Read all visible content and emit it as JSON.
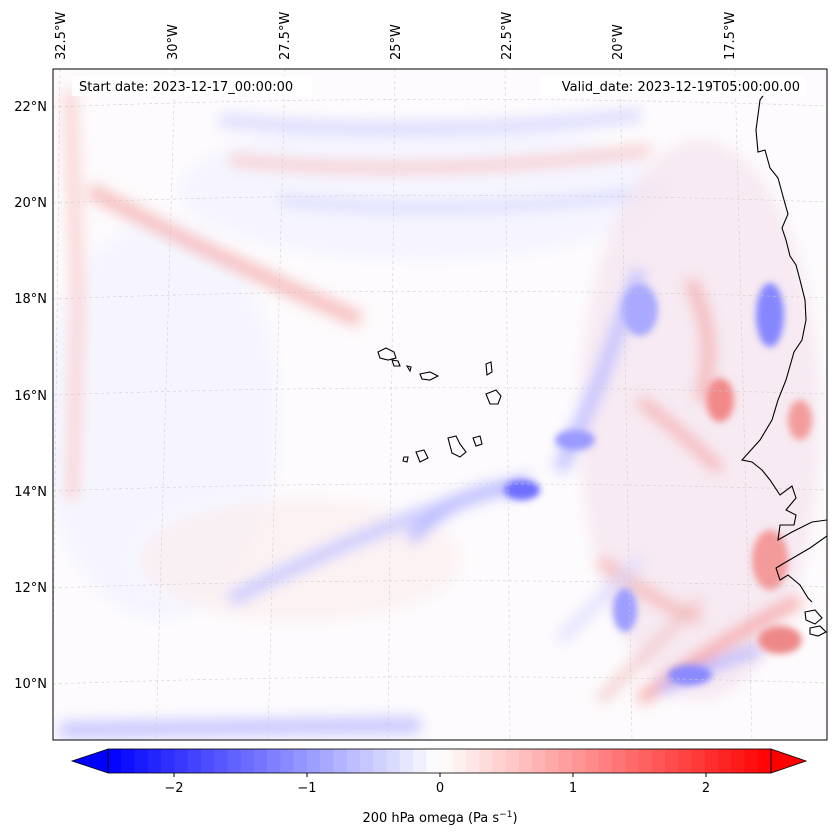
{
  "map": {
    "start_label": "Start date: 2023-12-17_00:00:00",
    "valid_label": "Valid_date: 2023-12-19T05:00:00.00",
    "lon_labels": [
      "32.5°W",
      "30°W",
      "27.5°W",
      "25°W",
      "22.5°W",
      "20°W",
      "17.5°W"
    ],
    "lat_labels": [
      "22°N",
      "20°N",
      "18°N",
      "16°N",
      "14°N",
      "12°N",
      "10°N"
    ],
    "gridlines": true,
    "projection": "conic"
  },
  "colorbar": {
    "label_prefix": "200 hPa omega (Pa s",
    "label_exp": "−1",
    "label_suffix": ")",
    "ticks": [
      "−2",
      "−1",
      "0",
      "1",
      "2"
    ],
    "tick_values": [
      -2,
      -1,
      0,
      1,
      2
    ],
    "vmin": -2.5,
    "vmax": 2.5,
    "extend": "both",
    "colormap": "bwr",
    "low_color": "#0000ff",
    "mid_color": "#ffffff",
    "high_color": "#ff0000"
  }
}
